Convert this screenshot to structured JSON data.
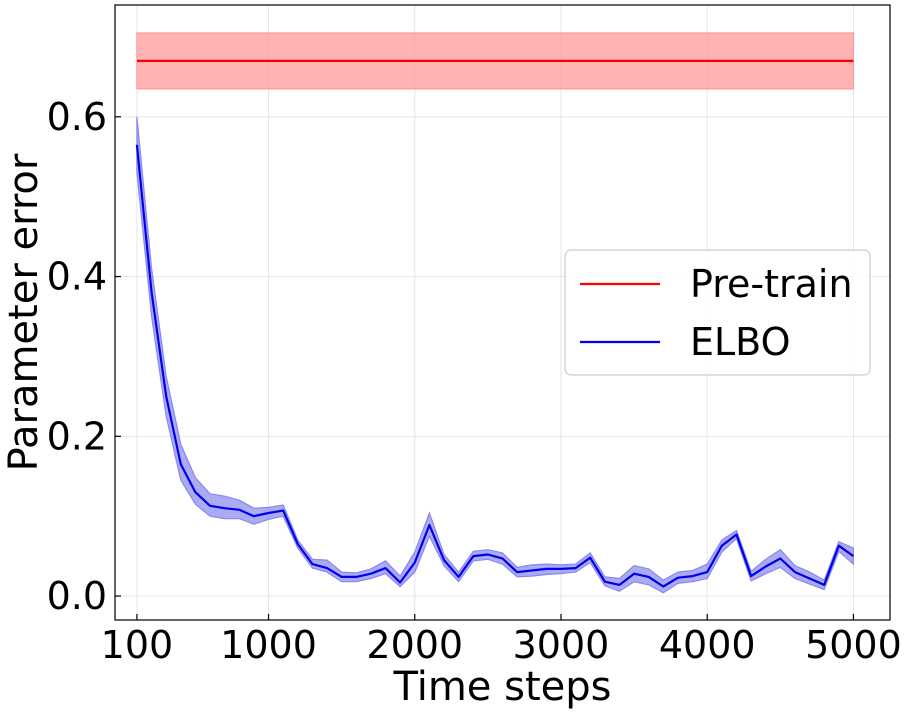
{
  "chart_data": {
    "type": "line",
    "title": "",
    "xlabel": "Time steps",
    "ylabel": "Parameter error",
    "xlim": [
      -50,
      5250
    ],
    "ylim": [
      -0.03,
      0.74
    ],
    "xticks": [
      100,
      1000,
      2000,
      3000,
      4000,
      5000
    ],
    "xtick_labels": [
      "100",
      "1000",
      "2000",
      "3000",
      "4000",
      "5000"
    ],
    "yticks": [
      0.0,
      0.2,
      0.4,
      0.6
    ],
    "ytick_labels": [
      "0.0",
      "0.2",
      "0.4",
      "0.6"
    ],
    "grid": true,
    "legend_position": "center-right",
    "series": [
      {
        "name": "Pre-train",
        "color": "#ff0000",
        "band_color": "#ff9999",
        "x": [
          100,
          5000
        ],
        "y": [
          0.67,
          0.67
        ],
        "lower": [
          0.635,
          0.635
        ],
        "upper": [
          0.705,
          0.705
        ]
      },
      {
        "name": "ELBO",
        "color": "#0000ee",
        "band_color": "#8888ee",
        "x": [
          100,
          200,
          300,
          400,
          500,
          600,
          700,
          800,
          900,
          1000,
          1100,
          1200,
          1300,
          1400,
          1500,
          1600,
          1700,
          1800,
          1900,
          2000,
          2100,
          2200,
          2300,
          2400,
          2500,
          2600,
          2700,
          2800,
          2900,
          3000,
          3100,
          3200,
          3300,
          3400,
          3500,
          3600,
          3700,
          3800,
          3900,
          4000,
          4100,
          4200,
          4300,
          4400,
          4500,
          4600,
          4700,
          4800,
          4900,
          5000
        ],
        "y": [
          0.565,
          0.38,
          0.25,
          0.165,
          0.13,
          0.113,
          0.11,
          0.108,
          0.1,
          0.104,
          0.107,
          0.065,
          0.04,
          0.035,
          0.024,
          0.024,
          0.028,
          0.035,
          0.017,
          0.042,
          0.089,
          0.045,
          0.024,
          0.05,
          0.052,
          0.047,
          0.03,
          0.032,
          0.034,
          0.034,
          0.035,
          0.048,
          0.018,
          0.014,
          0.028,
          0.024,
          0.012,
          0.023,
          0.025,
          0.03,
          0.063,
          0.077,
          0.025,
          0.037,
          0.047,
          0.03,
          0.022,
          0.014,
          0.063,
          0.05
        ],
        "lower": [
          0.53,
          0.35,
          0.225,
          0.145,
          0.115,
          0.1,
          0.097,
          0.097,
          0.09,
          0.096,
          0.1,
          0.06,
          0.035,
          0.03,
          0.018,
          0.018,
          0.022,
          0.028,
          0.012,
          0.03,
          0.075,
          0.038,
          0.018,
          0.044,
          0.046,
          0.04,
          0.024,
          0.025,
          0.027,
          0.028,
          0.03,
          0.042,
          0.013,
          0.006,
          0.018,
          0.014,
          0.004,
          0.016,
          0.018,
          0.022,
          0.055,
          0.072,
          0.019,
          0.028,
          0.036,
          0.022,
          0.015,
          0.008,
          0.056,
          0.04
        ],
        "upper": [
          0.6,
          0.41,
          0.275,
          0.19,
          0.148,
          0.128,
          0.125,
          0.12,
          0.11,
          0.111,
          0.114,
          0.07,
          0.046,
          0.045,
          0.03,
          0.029,
          0.034,
          0.044,
          0.025,
          0.055,
          0.104,
          0.052,
          0.03,
          0.056,
          0.058,
          0.054,
          0.036,
          0.039,
          0.04,
          0.039,
          0.04,
          0.054,
          0.024,
          0.022,
          0.038,
          0.034,
          0.02,
          0.03,
          0.032,
          0.04,
          0.07,
          0.082,
          0.031,
          0.046,
          0.058,
          0.038,
          0.03,
          0.02,
          0.068,
          0.06
        ]
      }
    ]
  }
}
